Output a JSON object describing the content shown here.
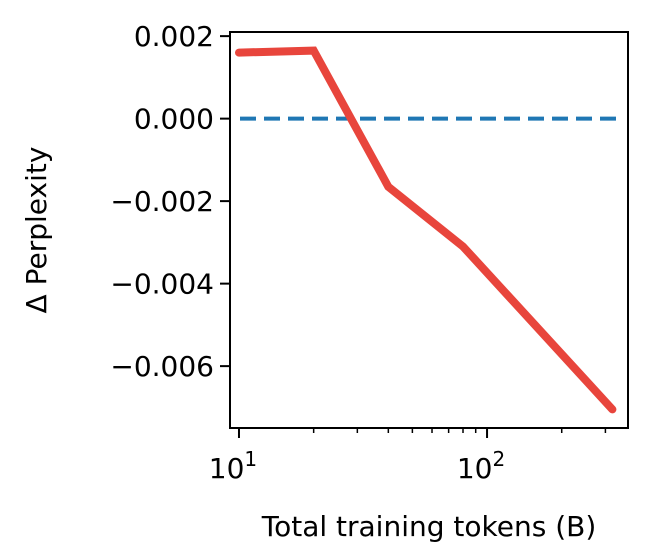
{
  "chart_data": {
    "type": "line",
    "title": "",
    "xlabel": "Total training tokens (B)",
    "ylabel": "Δ Perplexity",
    "x_scale": "log",
    "xlim": [
      9.2,
      370
    ],
    "ylim": [
      -0.0075,
      0.0021
    ],
    "x_ticks": [
      {
        "value": 10,
        "base": "10",
        "exp": "1"
      },
      {
        "value": 100,
        "base": "10",
        "exp": "2"
      }
    ],
    "y_ticks": [
      {
        "value": 0.002,
        "label": "0.002"
      },
      {
        "value": 0.0,
        "label": "0.000"
      },
      {
        "value": -0.002,
        "label": "−0.002"
      },
      {
        "value": -0.004,
        "label": "−0.004"
      },
      {
        "value": -0.006,
        "label": "−0.006"
      }
    ],
    "grid": false,
    "reference_line": {
      "y": 0.0,
      "style": "dashed",
      "color": "#1f77b4"
    },
    "series": [
      {
        "color": "#e8453c",
        "x": [
          10,
          20,
          40,
          80,
          320
        ],
        "y": [
          0.0016,
          0.00165,
          -0.00165,
          -0.0031,
          -0.00705
        ]
      }
    ]
  }
}
